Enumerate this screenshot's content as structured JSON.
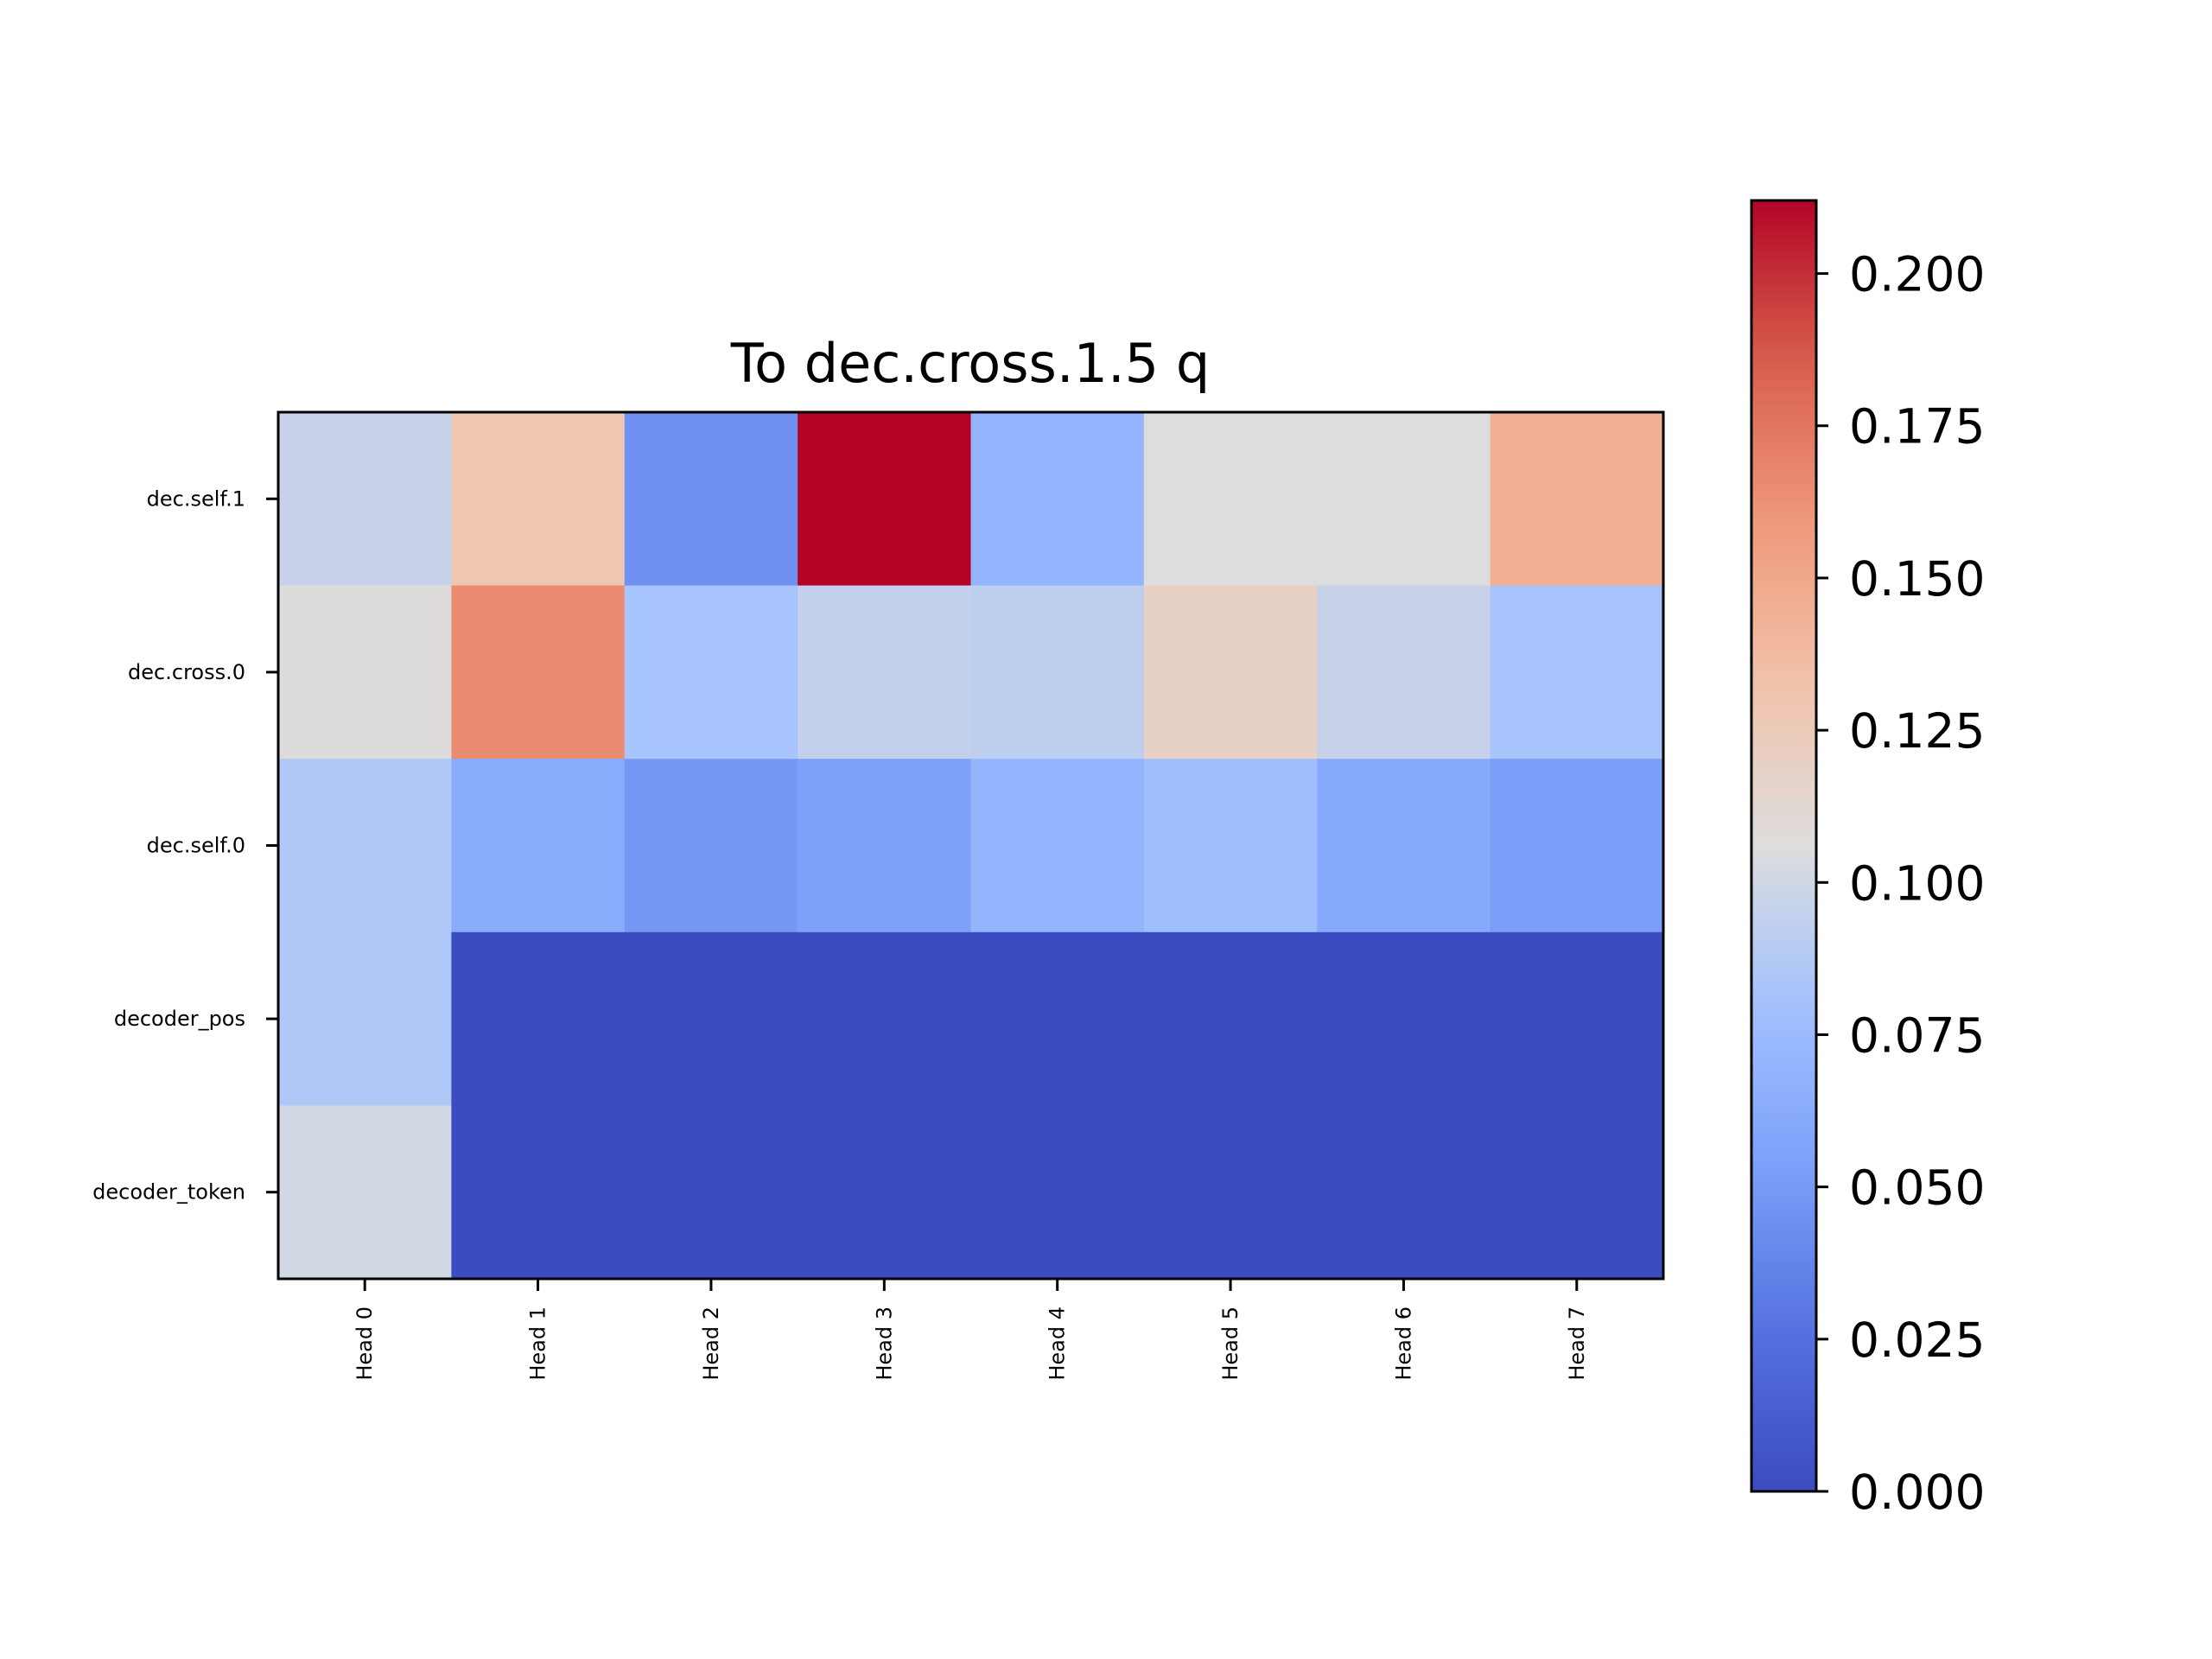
{
  "chart_data": {
    "type": "heatmap",
    "title": "To dec.cross.1.5 q",
    "xlabel": "",
    "ylabel": "",
    "x_categories": [
      "Head 0",
      "Head 1",
      "Head 2",
      "Head 3",
      "Head 4",
      "Head 5",
      "Head 6",
      "Head 7"
    ],
    "y_categories": [
      "dec.self.1",
      "dec.cross.0",
      "dec.self.0",
      "decoder_pos",
      "decoder_token"
    ],
    "values": [
      [
        0.096,
        0.129,
        0.045,
        0.212,
        0.07,
        0.106,
        0.106,
        0.145
      ],
      [
        0.107,
        0.165,
        0.082,
        0.094,
        0.092,
        0.119,
        0.096,
        0.082
      ],
      [
        0.086,
        0.062,
        0.049,
        0.054,
        0.069,
        0.077,
        0.061,
        0.052
      ],
      [
        0.086,
        0.0,
        0.0,
        0.0,
        0.0,
        0.0,
        0.0,
        0.0
      ],
      [
        0.101,
        0.0,
        0.0,
        0.0,
        0.0,
        0.0,
        0.0,
        0.0
      ]
    ],
    "colormap": "coolwarm",
    "colorbar": {
      "vmin": 0.0,
      "vmax": 0.212,
      "ticks": [
        0.0,
        0.025,
        0.05,
        0.075,
        0.1,
        0.125,
        0.15,
        0.175,
        0.2
      ],
      "tick_labels": [
        "0.000",
        "0.025",
        "0.050",
        "0.075",
        "0.100",
        "0.125",
        "0.150",
        "0.175",
        "0.200"
      ]
    },
    "grid": false,
    "legend": "colorbar-right"
  }
}
